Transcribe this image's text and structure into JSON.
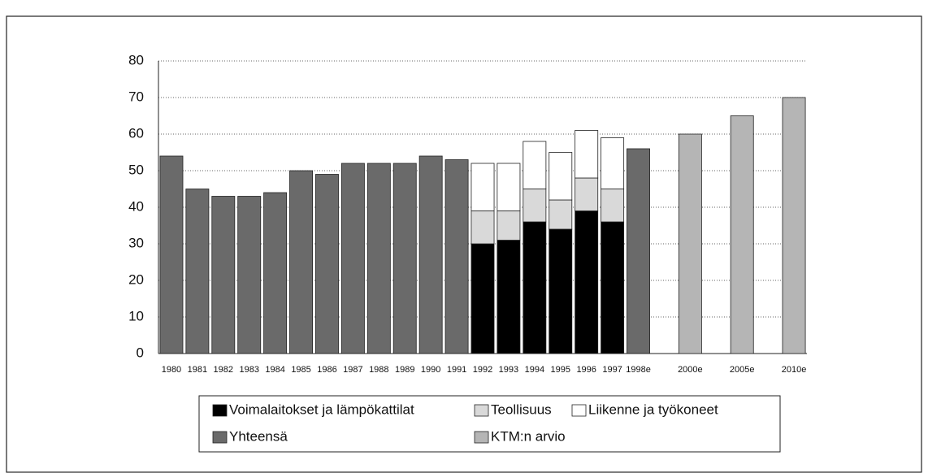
{
  "chart_data": {
    "type": "bar",
    "stacked": true,
    "categories": [
      "1980",
      "1981",
      "1982",
      "1983",
      "1984",
      "1985",
      "1986",
      "1987",
      "1988",
      "1989",
      "1990",
      "1991",
      "1992",
      "1993",
      "1994",
      "1995",
      "1996",
      "1997",
      "1998e",
      null,
      "2000e",
      null,
      "2005e",
      null,
      "2010e"
    ],
    "series": [
      {
        "name": "Voimalaitokset ja lämpökattilat",
        "color": "#000000",
        "values": [
          null,
          null,
          null,
          null,
          null,
          null,
          null,
          null,
          null,
          null,
          null,
          null,
          30,
          31,
          36,
          34,
          39,
          36,
          null,
          null,
          null,
          null,
          null,
          null,
          null
        ]
      },
      {
        "name": "Teollisuus",
        "color": "#d9d9d9",
        "values": [
          null,
          null,
          null,
          null,
          null,
          null,
          null,
          null,
          null,
          null,
          null,
          null,
          9,
          8,
          9,
          8,
          9,
          9,
          null,
          null,
          null,
          null,
          null,
          null,
          null
        ]
      },
      {
        "name": "Liikenne ja työkoneet",
        "color": "#ffffff",
        "values": [
          null,
          null,
          null,
          null,
          null,
          null,
          null,
          null,
          null,
          null,
          null,
          null,
          13,
          13,
          13,
          13,
          13,
          14,
          null,
          null,
          null,
          null,
          null,
          null,
          null
        ]
      },
      {
        "name": "Yhteensä",
        "color": "#6a6a6a",
        "values": [
          54,
          45,
          43,
          43,
          44,
          50,
          49,
          52,
          52,
          52,
          54,
          53,
          null,
          null,
          null,
          null,
          null,
          null,
          56,
          null,
          null,
          null,
          null,
          null,
          null
        ]
      },
      {
        "name": "KTM:n arvio",
        "color": "#b5b5b5",
        "values": [
          null,
          null,
          null,
          null,
          null,
          null,
          null,
          null,
          null,
          null,
          null,
          null,
          null,
          null,
          null,
          null,
          null,
          null,
          null,
          null,
          60,
          null,
          65,
          null,
          70
        ]
      }
    ],
    "ylim": [
      0,
      80
    ],
    "yticks": [
      0,
      10,
      20,
      30,
      40,
      50,
      60,
      70,
      80
    ],
    "grid": true
  }
}
